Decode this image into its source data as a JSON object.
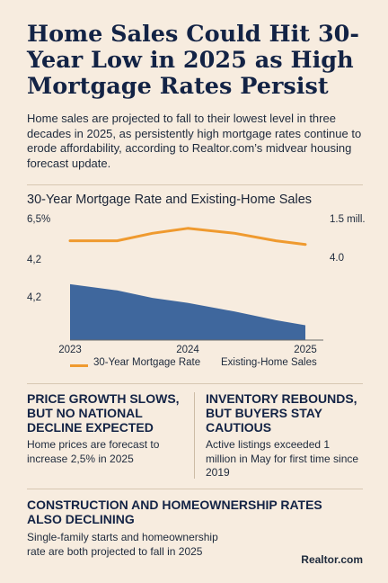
{
  "headline": "Home Sales Could Hit 30-Year Low in 2025 as High Mortgage Rates Persist",
  "intro": "Home sales are projected to fall to their lowest level in three decades in 2025, as persistently high mortgage rates continue to erode affordability, according to Realtor.com’s midvear housing forecast update.",
  "chart_data": {
    "type": "line",
    "title": "30-Year Mortgage Rate and Existing-Home Sales",
    "x_ticks": [
      "2023",
      "2024",
      "2025"
    ],
    "left_axis_ticks": [
      "6,5%",
      "4,2",
      "4,2"
    ],
    "right_axis_ticks": [
      "1.5 mill.",
      "4.0"
    ],
    "series": [
      {
        "name": "30-Year Mortgage Rate",
        "style": "line",
        "color": "#ef9a2f",
        "x": [
          2023.0,
          2023.4,
          2023.7,
          2024.0,
          2024.4,
          2024.75,
          2025.0
        ],
        "values": [
          6.0,
          6.0,
          6.3,
          6.5,
          6.3,
          6.0,
          5.85
        ]
      },
      {
        "name": "Existing-Home Sales",
        "style": "area",
        "color": "#3f679d",
        "x": [
          2023.0,
          2023.4,
          2023.7,
          2024.0,
          2024.4,
          2024.75,
          2025.0
        ],
        "values": [
          4.25,
          4.0,
          3.7,
          3.5,
          3.15,
          2.8,
          2.6
        ]
      }
    ],
    "legend": [
      "30-Year Mortgage Rate",
      "Existing-Home Sales"
    ],
    "legend_position": "bottom",
    "grid": false
  },
  "sections": {
    "price": {
      "title": "PRICE GROWTH SLOWS, BUT NO NATIONAL DECLINE EXPECTED",
      "body": "Home prices are forecast to increase 2,5% in 2025"
    },
    "inventory": {
      "title": "INVENTORY REBOUNDS, BUT BUYERS STAY CAUTIOUS",
      "body": "Active listings exceeded 1 million in May for first time since 2019"
    },
    "construction": {
      "title": "CONSTRUCTION AND HOMEOWNERSHIP RATES ALSO DECLINING",
      "body": "Single-family starts and homeownership rate are both projected to fall in 2025"
    }
  },
  "brand": "Realtor.com",
  "colors": {
    "background": "#f7ecdf",
    "navy": "#132345",
    "orange": "#ef9a2f",
    "blue": "#3f679d"
  }
}
